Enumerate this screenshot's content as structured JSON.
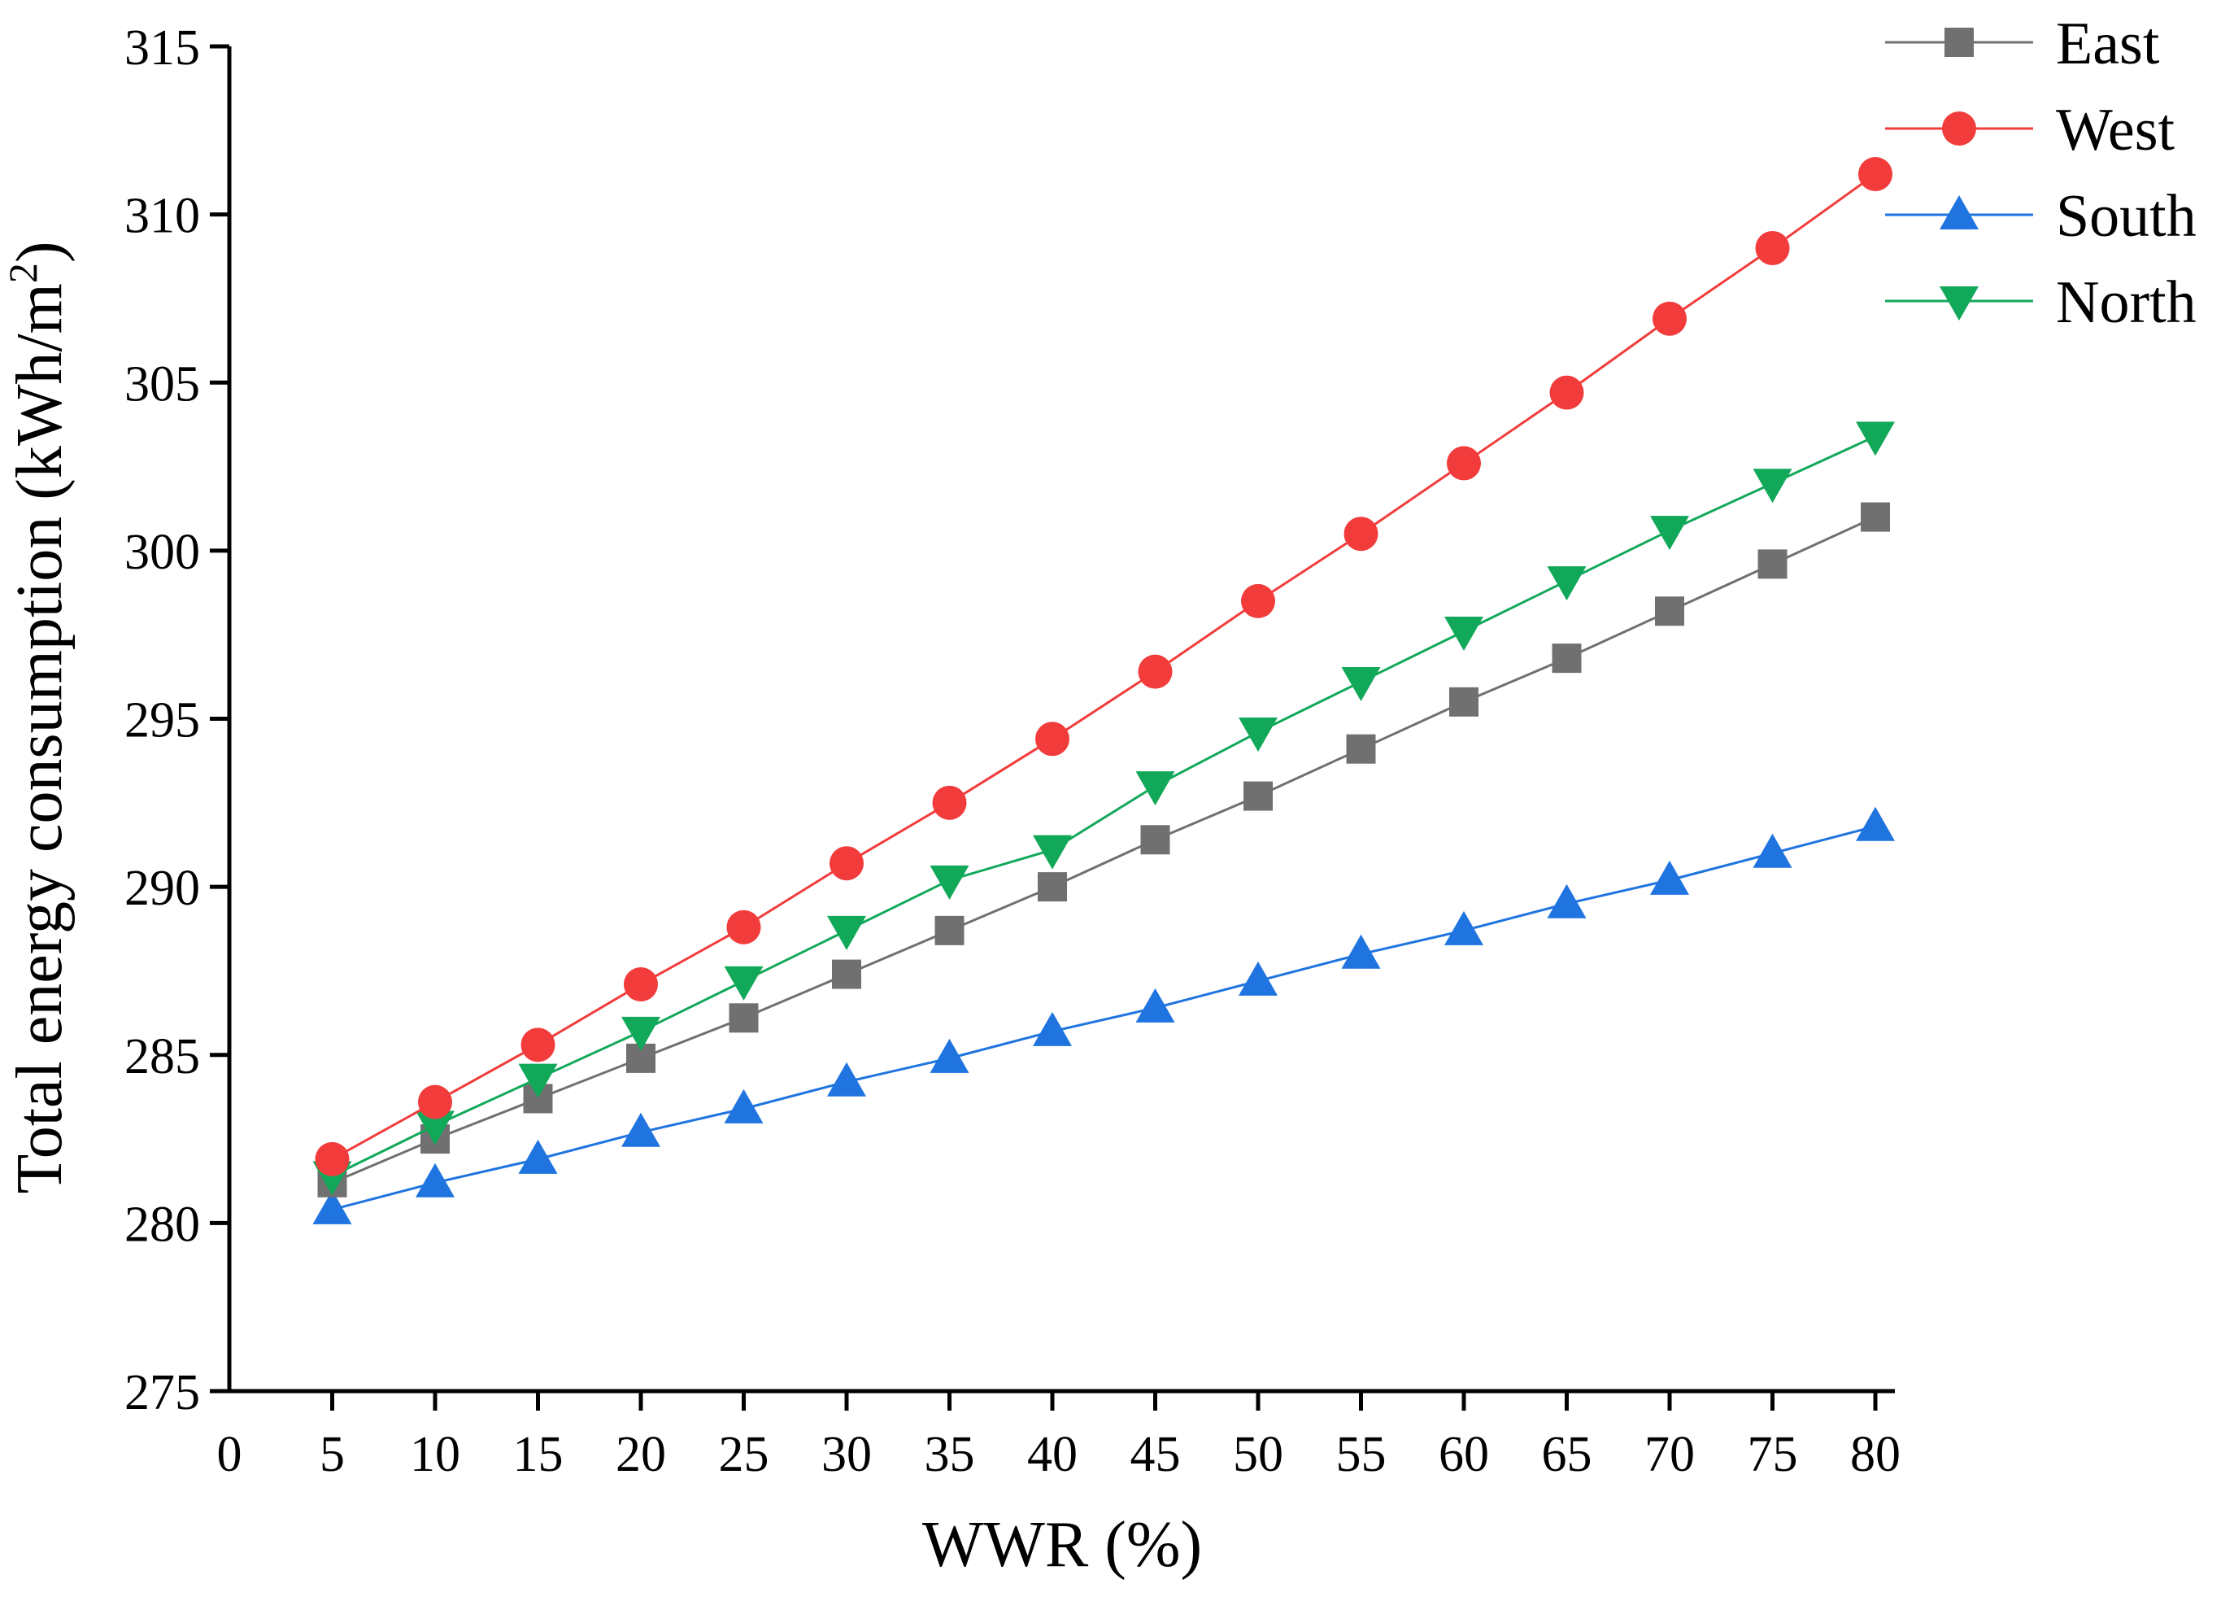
{
  "colors": {
    "East": "#707070",
    "West": "#f23c3c",
    "South": "#1f74e0",
    "North": "#12a85a"
  },
  "chart_data": {
    "type": "line",
    "title": "",
    "xlabel": "WWR (%)",
    "ylabel_main": "Total energy consumption (kWh/m",
    "ylabel_sup": "2",
    "ylabel_close": ")",
    "xlim": [
      0,
      80
    ],
    "ylim": [
      275,
      315
    ],
    "x_ticks": [
      "0",
      "5",
      "10",
      "15",
      "20",
      "25",
      "30",
      "35",
      "40",
      "45",
      "50",
      "55",
      "60",
      "65",
      "70",
      "75",
      "80"
    ],
    "y_ticks": [
      "275",
      "280",
      "285",
      "290",
      "295",
      "300",
      "305",
      "310",
      "315"
    ],
    "grid": false,
    "legend_position": "top-right",
    "x": [
      5,
      10,
      15,
      20,
      25,
      30,
      35,
      40,
      45,
      50,
      55,
      60,
      65,
      70,
      75,
      80
    ],
    "series": [
      {
        "name": "East",
        "marker": "square",
        "values": [
          281.2,
          282.5,
          283.7,
          284.9,
          286.1,
          287.4,
          288.7,
          290.0,
          291.4,
          292.7,
          294.1,
          295.5,
          296.8,
          298.2,
          299.6,
          301.0
        ]
      },
      {
        "name": "West",
        "marker": "circle",
        "values": [
          281.9,
          283.6,
          285.3,
          287.1,
          288.8,
          290.7,
          292.5,
          294.4,
          296.4,
          298.5,
          300.5,
          302.6,
          304.7,
          306.9,
          309.0,
          311.2
        ]
      },
      {
        "name": "South",
        "marker": "triangle-up",
        "values": [
          280.4,
          281.2,
          281.9,
          282.7,
          283.4,
          284.2,
          284.9,
          285.7,
          286.4,
          287.2,
          288.0,
          288.7,
          289.5,
          290.2,
          291.0,
          291.8
        ]
      },
      {
        "name": "North",
        "marker": "triangle-down",
        "values": [
          281.4,
          282.9,
          284.3,
          285.7,
          287.2,
          288.7,
          290.2,
          291.1,
          293.0,
          294.6,
          296.1,
          297.6,
          299.1,
          300.6,
          302.0,
          303.4
        ]
      }
    ]
  }
}
